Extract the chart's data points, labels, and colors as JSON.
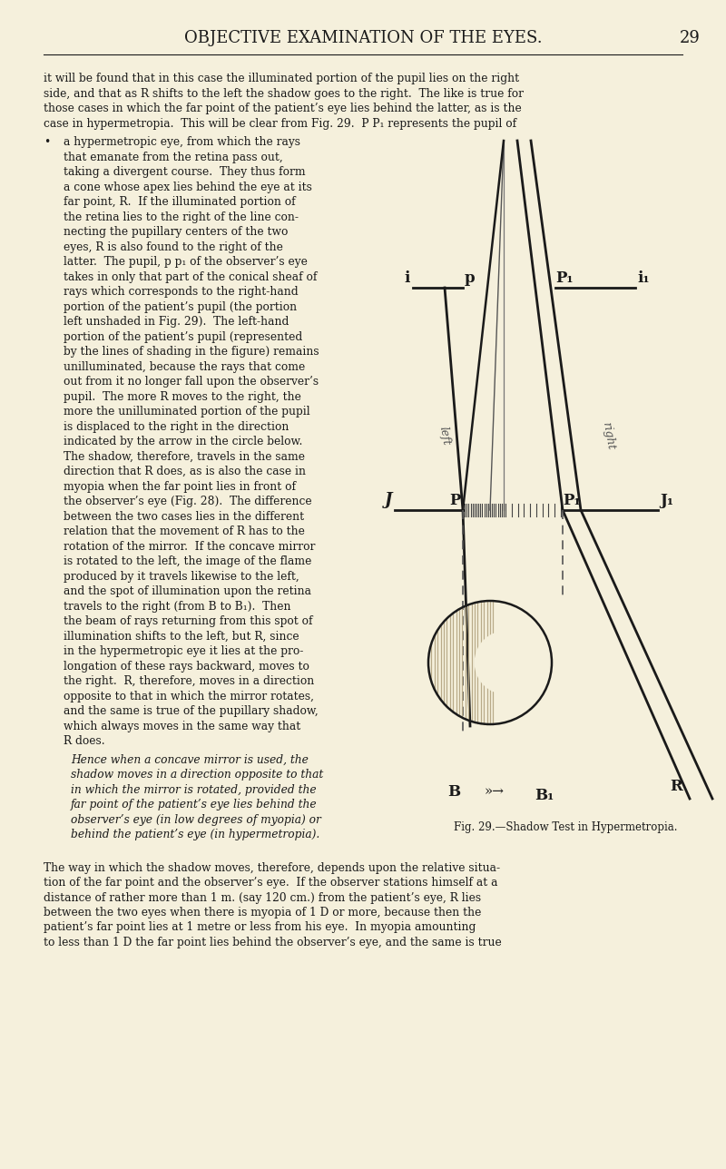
{
  "bg_color": "#f5f0dc",
  "fig_width": 8.0,
  "fig_height": 12.88,
  "title": "OBJECTIVE EXAMINATION OF THE EYES.",
  "page_number": "29",
  "fig_caption": "Fig. 29.—Shadow Test in Hypermetropia.",
  "text_color": "#1a1a1a",
  "line_color": "#1a1a1a",
  "para0": "it will be found that in this case the illuminated portion of the pupil lies on the right\nside, and that as R shifts to the left the shadow goes to the right.  The like is true for\nthose cases in which the far point of the patient’s eye lies behind the latter, as is the\ncase in hypermetropia.  This will be clear from Fig. 29.  P P₁ represents the pupil of",
  "para1_lines": [
    "a hypermetropic eye, from which the rays",
    "that emanate from the retina pass out,",
    "taking a divergent course.  They thus form",
    "a cone whose apex lies behind the eye at its",
    "far point, R.  If the illuminated portion of",
    "the retina lies to the right of the line con-",
    "necting the pupillary centers of the two",
    "eyes, R is also found to the right of the",
    "latter.  The pupil, p p₁ of the observer’s eye",
    "takes in only that part of the conical sheaf of",
    "rays which corresponds to the right-hand",
    "portion of the patient’s pupil (the portion",
    "left unshaded in Fig. 29).  The left-hand",
    "portion of the patient’s pupil (represented",
    "by the lines of shading in the figure) remains",
    "unilluminated, because the rays that come",
    "out from it no longer fall upon the observer’s",
    "pupil.  The more R moves to the right, the",
    "more the unilluminated portion of the pupil",
    "is displaced to the right in the direction",
    "indicated by the arrow in the circle below.",
    "The shadow, therefore, travels in the same",
    "direction that R does, as is also the case in",
    "myopia when the far point lies in front of",
    "the observer’s eye (Fig. 28).  The difference",
    "between the two cases lies in the different",
    "relation that the movement of R has to the",
    "rotation of the mirror.  If the concave mirror",
    "is rotated to the left, the image of the flame",
    "produced by it travels likewise to the left,",
    "and the spot of illumination upon the retina",
    "travels to the right (from B to B₁).  Then",
    "the beam of rays returning from this spot of",
    "illumination shifts to the left, but R, since",
    "in the hypermetropic eye it lies at the pro-",
    "longation of these rays backward, moves to",
    "the right.  R, therefore, moves in a direction",
    "opposite to that in which the mirror rotates,",
    "and the same is true of the pupillary shadow,",
    "which always moves in the same way that",
    "R does."
  ],
  "para2_lines": [
    "Hence when a concave mirror is used, the",
    "shadow moves in a direction opposite to that",
    "in which the mirror is rotated, provided the",
    "far point of the patient’s eye lies behind the",
    "observer’s eye (in low degrees of myopia) or",
    "behind the patient’s eye (in hypermetropia)."
  ],
  "para3": "The way in which the shadow moves, therefore, depends upon the relative situa-\ntion of the far point and the observer’s eye.  If the observer stations himself at a\ndistance of rather more than 1 m. (say 120 cm.) from the patient’s eye, R lies\nbetween the two eyes when there is myopia of 1 D or more, because then the\npatient’s far point lies at 1 metre or less from his eye.  In myopia amounting\nto less than 1 D the far point lies behind the observer’s eye, and the same is true"
}
